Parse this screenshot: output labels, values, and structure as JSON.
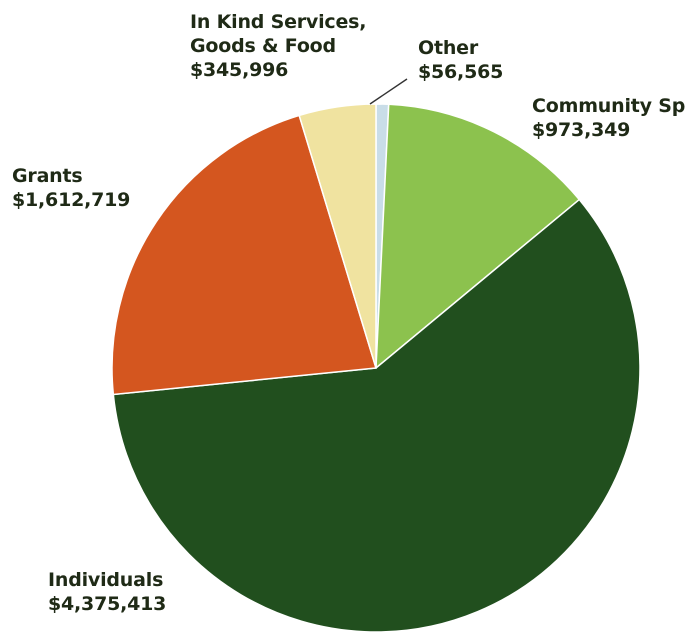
{
  "colors": {
    "individuals": "#214f1e",
    "community": "#8cc24e",
    "other": "#c9dde8",
    "in_kind": "#f0e3a0",
    "grants": "#d4561f",
    "edge": "#ffffff",
    "label_text": "#1f2a16"
  },
  "chart_data": {
    "type": "pie",
    "title": "",
    "slices": [
      {
        "name": "Other",
        "label": "Other",
        "value_text": "$56,565",
        "value": 56565,
        "color_key": "other"
      },
      {
        "name": "Community Sp",
        "label": "Community Sp",
        "value_text": "$973,349",
        "value": 973349,
        "color_key": "community"
      },
      {
        "name": "Individuals",
        "label": "Individuals",
        "value_text": "$4,375,413",
        "value": 4375413,
        "color_key": "individuals"
      },
      {
        "name": "Grants",
        "label": "Grants",
        "value_text": "$1,612,719",
        "value": 1612719,
        "color_key": "grants"
      },
      {
        "name": "In Kind Services, Goods & Food",
        "label_line1": "In Kind Services,",
        "label_line2": "Goods & Food",
        "value_text": "$345,996",
        "value": 345996,
        "color_key": "in_kind"
      }
    ]
  }
}
